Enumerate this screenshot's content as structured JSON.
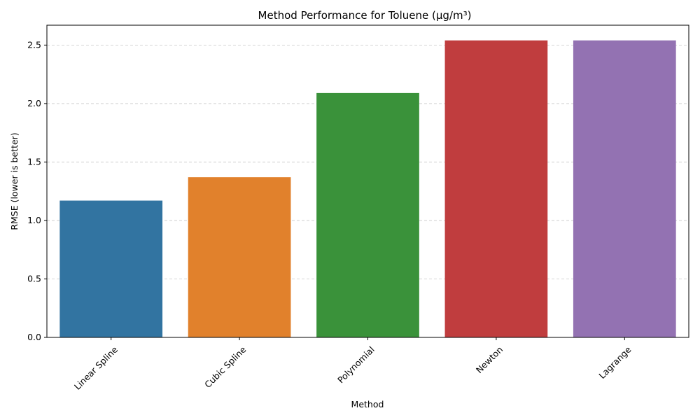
{
  "chart_data": {
    "type": "bar",
    "title": "Method Performance for Toluene (µg/m³)",
    "xlabel": "Method",
    "ylabel": "RMSE (lower is better)",
    "categories": [
      "Linear Spline",
      "Cubic Spline",
      "Polynomial",
      "Newton",
      "Lagrange"
    ],
    "values": [
      1.17,
      1.37,
      2.09,
      2.54,
      2.54
    ],
    "colors": [
      "#3274a1",
      "#e1812c",
      "#3a923a",
      "#c03d3e",
      "#9372b2"
    ],
    "ylim": [
      0,
      2.67
    ],
    "yticks": [
      "0.0",
      "0.5",
      "1.0",
      "1.5",
      "2.0",
      "2.5"
    ],
    "grid": "y-dashed",
    "x_tick_rotation": 45
  }
}
